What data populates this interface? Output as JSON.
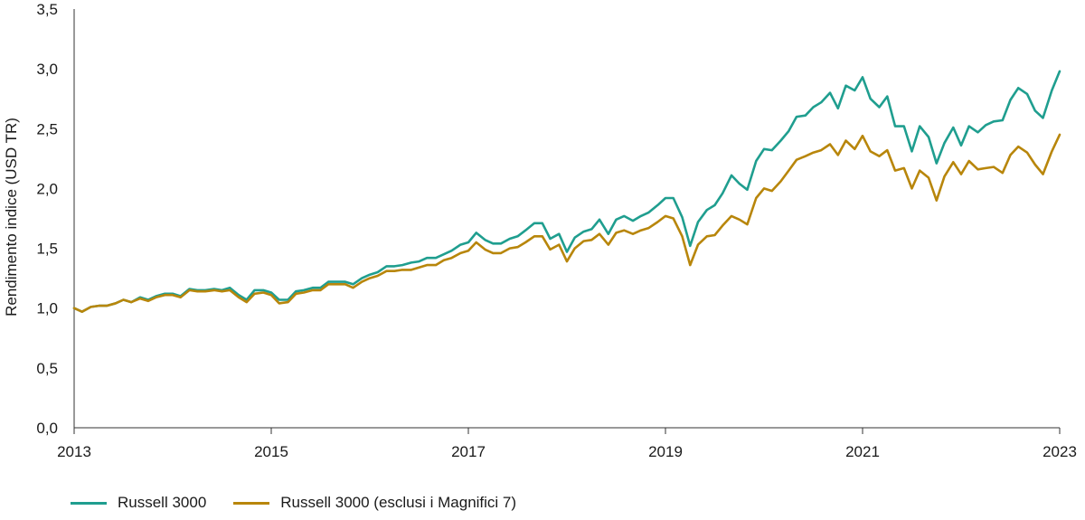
{
  "chart_data": {
    "type": "line",
    "ylabel": "Rendimento indice (USD TR)",
    "xlabel": "",
    "ylim": [
      0,
      3.5
    ],
    "yticks": [
      "0,0",
      "0,5",
      "1,0",
      "1,5",
      "2,0",
      "2,5",
      "3,0",
      "3,5"
    ],
    "xticks": [
      "2013",
      "2015",
      "2017",
      "2019",
      "2021",
      "2023"
    ],
    "xlim": [
      2013,
      2023
    ],
    "grid": false,
    "legend_position": "bottom-left",
    "series": [
      {
        "name": "Russell 3000",
        "color": "#1f9e8f",
        "points": [
          [
            2013.0,
            1.0
          ],
          [
            2013.08,
            0.97
          ],
          [
            2013.17,
            1.01
          ],
          [
            2013.25,
            1.02
          ],
          [
            2013.33,
            1.02
          ],
          [
            2013.42,
            1.04
          ],
          [
            2013.5,
            1.07
          ],
          [
            2013.58,
            1.05
          ],
          [
            2013.67,
            1.09
          ],
          [
            2013.75,
            1.07
          ],
          [
            2013.83,
            1.1
          ],
          [
            2013.92,
            1.12
          ],
          [
            2014.0,
            1.12
          ],
          [
            2014.08,
            1.1
          ],
          [
            2014.17,
            1.16
          ],
          [
            2014.25,
            1.15
          ],
          [
            2014.33,
            1.15
          ],
          [
            2014.42,
            1.16
          ],
          [
            2014.5,
            1.15
          ],
          [
            2014.58,
            1.17
          ],
          [
            2014.67,
            1.11
          ],
          [
            2014.75,
            1.07
          ],
          [
            2014.83,
            1.15
          ],
          [
            2014.92,
            1.15
          ],
          [
            2015.0,
            1.13
          ],
          [
            2015.08,
            1.07
          ],
          [
            2015.17,
            1.07
          ],
          [
            2015.25,
            1.14
          ],
          [
            2015.33,
            1.15
          ],
          [
            2015.42,
            1.17
          ],
          [
            2015.5,
            1.17
          ],
          [
            2015.58,
            1.22
          ],
          [
            2015.67,
            1.22
          ],
          [
            2015.75,
            1.22
          ],
          [
            2015.83,
            1.2
          ],
          [
            2015.92,
            1.25
          ],
          [
            2016.0,
            1.28
          ],
          [
            2016.08,
            1.3
          ],
          [
            2016.17,
            1.35
          ],
          [
            2016.25,
            1.35
          ],
          [
            2016.33,
            1.36
          ],
          [
            2016.42,
            1.38
          ],
          [
            2016.5,
            1.39
          ],
          [
            2016.58,
            1.42
          ],
          [
            2016.67,
            1.42
          ],
          [
            2016.75,
            1.45
          ],
          [
            2016.83,
            1.48
          ],
          [
            2016.92,
            1.53
          ],
          [
            2017.0,
            1.55
          ],
          [
            2017.08,
            1.63
          ],
          [
            2017.17,
            1.57
          ],
          [
            2017.25,
            1.54
          ],
          [
            2017.33,
            1.54
          ],
          [
            2017.42,
            1.58
          ],
          [
            2017.5,
            1.6
          ],
          [
            2017.58,
            1.65
          ],
          [
            2017.67,
            1.71
          ],
          [
            2017.75,
            1.71
          ],
          [
            2017.83,
            1.58
          ],
          [
            2017.92,
            1.62
          ],
          [
            2018.0,
            1.47
          ],
          [
            2018.08,
            1.59
          ],
          [
            2018.17,
            1.64
          ],
          [
            2018.25,
            1.66
          ],
          [
            2018.33,
            1.74
          ],
          [
            2018.42,
            1.62
          ],
          [
            2018.5,
            1.74
          ],
          [
            2018.58,
            1.77
          ],
          [
            2018.67,
            1.73
          ],
          [
            2018.75,
            1.77
          ],
          [
            2018.83,
            1.8
          ],
          [
            2018.92,
            1.86
          ],
          [
            2019.0,
            1.92
          ],
          [
            2019.08,
            1.92
          ],
          [
            2019.17,
            1.76
          ],
          [
            2019.25,
            1.52
          ],
          [
            2019.33,
            1.72
          ],
          [
            2019.42,
            1.82
          ],
          [
            2019.5,
            1.86
          ],
          [
            2019.58,
            1.96
          ],
          [
            2019.67,
            2.11
          ],
          [
            2019.75,
            2.04
          ],
          [
            2019.83,
            1.99
          ],
          [
            2019.92,
            2.23
          ],
          [
            2020.0,
            2.33
          ],
          [
            2020.08,
            2.32
          ],
          [
            2020.17,
            2.4
          ],
          [
            2020.25,
            2.48
          ],
          [
            2020.33,
            2.6
          ],
          [
            2020.42,
            2.61
          ],
          [
            2020.5,
            2.68
          ],
          [
            2020.58,
            2.72
          ],
          [
            2020.67,
            2.8
          ],
          [
            2020.75,
            2.67
          ],
          [
            2020.83,
            2.86
          ],
          [
            2020.92,
            2.82
          ],
          [
            2021.0,
            2.93
          ],
          [
            2021.08,
            2.75
          ],
          [
            2021.17,
            2.68
          ],
          [
            2021.25,
            2.77
          ],
          [
            2021.33,
            2.52
          ],
          [
            2021.42,
            2.52
          ],
          [
            2021.5,
            2.31
          ],
          [
            2021.58,
            2.52
          ],
          [
            2021.67,
            2.43
          ],
          [
            2021.75,
            2.21
          ],
          [
            2021.83,
            2.38
          ],
          [
            2021.92,
            2.51
          ],
          [
            2022.0,
            2.36
          ],
          [
            2022.08,
            2.52
          ],
          [
            2022.17,
            2.47
          ],
          [
            2022.25,
            2.53
          ],
          [
            2022.33,
            2.56
          ],
          [
            2022.42,
            2.57
          ],
          [
            2022.5,
            2.74
          ],
          [
            2022.58,
            2.84
          ],
          [
            2022.67,
            2.79
          ],
          [
            2022.75,
            2.65
          ],
          [
            2022.83,
            2.59
          ],
          [
            2022.92,
            2.82
          ],
          [
            2023.0,
            2.98
          ]
        ]
      },
      {
        "name": "Russell 3000 (esclusi i Magnifici 7)",
        "color": "#b8860b",
        "points": [
          [
            2013.0,
            1.0
          ],
          [
            2013.08,
            0.97
          ],
          [
            2013.17,
            1.01
          ],
          [
            2013.25,
            1.02
          ],
          [
            2013.33,
            1.02
          ],
          [
            2013.42,
            1.04
          ],
          [
            2013.5,
            1.07
          ],
          [
            2013.58,
            1.05
          ],
          [
            2013.67,
            1.08
          ],
          [
            2013.75,
            1.06
          ],
          [
            2013.83,
            1.09
          ],
          [
            2013.92,
            1.11
          ],
          [
            2014.0,
            1.11
          ],
          [
            2014.08,
            1.09
          ],
          [
            2014.17,
            1.15
          ],
          [
            2014.25,
            1.14
          ],
          [
            2014.33,
            1.14
          ],
          [
            2014.42,
            1.15
          ],
          [
            2014.5,
            1.14
          ],
          [
            2014.58,
            1.15
          ],
          [
            2014.67,
            1.09
          ],
          [
            2014.75,
            1.05
          ],
          [
            2014.83,
            1.12
          ],
          [
            2014.92,
            1.13
          ],
          [
            2015.0,
            1.11
          ],
          [
            2015.08,
            1.04
          ],
          [
            2015.17,
            1.05
          ],
          [
            2015.25,
            1.12
          ],
          [
            2015.33,
            1.13
          ],
          [
            2015.42,
            1.15
          ],
          [
            2015.5,
            1.15
          ],
          [
            2015.58,
            1.2
          ],
          [
            2015.67,
            1.2
          ],
          [
            2015.75,
            1.2
          ],
          [
            2015.83,
            1.17
          ],
          [
            2015.92,
            1.22
          ],
          [
            2016.0,
            1.25
          ],
          [
            2016.08,
            1.27
          ],
          [
            2016.17,
            1.31
          ],
          [
            2016.25,
            1.31
          ],
          [
            2016.33,
            1.32
          ],
          [
            2016.42,
            1.32
          ],
          [
            2016.5,
            1.34
          ],
          [
            2016.58,
            1.36
          ],
          [
            2016.67,
            1.36
          ],
          [
            2016.75,
            1.4
          ],
          [
            2016.83,
            1.42
          ],
          [
            2016.92,
            1.46
          ],
          [
            2017.0,
            1.48
          ],
          [
            2017.08,
            1.55
          ],
          [
            2017.17,
            1.49
          ],
          [
            2017.25,
            1.46
          ],
          [
            2017.33,
            1.46
          ],
          [
            2017.42,
            1.5
          ],
          [
            2017.5,
            1.51
          ],
          [
            2017.58,
            1.55
          ],
          [
            2017.67,
            1.6
          ],
          [
            2017.75,
            1.6
          ],
          [
            2017.83,
            1.49
          ],
          [
            2017.92,
            1.53
          ],
          [
            2018.0,
            1.39
          ],
          [
            2018.08,
            1.5
          ],
          [
            2018.17,
            1.56
          ],
          [
            2018.25,
            1.57
          ],
          [
            2018.33,
            1.62
          ],
          [
            2018.42,
            1.53
          ],
          [
            2018.5,
            1.63
          ],
          [
            2018.58,
            1.65
          ],
          [
            2018.67,
            1.62
          ],
          [
            2018.75,
            1.65
          ],
          [
            2018.83,
            1.67
          ],
          [
            2018.92,
            1.72
          ],
          [
            2019.0,
            1.77
          ],
          [
            2019.08,
            1.75
          ],
          [
            2019.17,
            1.6
          ],
          [
            2019.25,
            1.36
          ],
          [
            2019.33,
            1.53
          ],
          [
            2019.42,
            1.6
          ],
          [
            2019.5,
            1.61
          ],
          [
            2019.58,
            1.69
          ],
          [
            2019.67,
            1.77
          ],
          [
            2019.75,
            1.74
          ],
          [
            2019.83,
            1.7
          ],
          [
            2019.92,
            1.92
          ],
          [
            2020.0,
            2.0
          ],
          [
            2020.08,
            1.98
          ],
          [
            2020.17,
            2.06
          ],
          [
            2020.25,
            2.15
          ],
          [
            2020.33,
            2.24
          ],
          [
            2020.42,
            2.27
          ],
          [
            2020.5,
            2.3
          ],
          [
            2020.58,
            2.32
          ],
          [
            2020.67,
            2.37
          ],
          [
            2020.75,
            2.28
          ],
          [
            2020.83,
            2.4
          ],
          [
            2020.92,
            2.33
          ],
          [
            2021.0,
            2.44
          ],
          [
            2021.08,
            2.31
          ],
          [
            2021.17,
            2.27
          ],
          [
            2021.25,
            2.32
          ],
          [
            2021.33,
            2.15
          ],
          [
            2021.42,
            2.17
          ],
          [
            2021.5,
            2.0
          ],
          [
            2021.58,
            2.15
          ],
          [
            2021.67,
            2.09
          ],
          [
            2021.75,
            1.9
          ],
          [
            2021.83,
            2.1
          ],
          [
            2021.92,
            2.22
          ],
          [
            2022.0,
            2.12
          ],
          [
            2022.08,
            2.23
          ],
          [
            2022.17,
            2.16
          ],
          [
            2022.25,
            2.17
          ],
          [
            2022.33,
            2.18
          ],
          [
            2022.42,
            2.13
          ],
          [
            2022.5,
            2.28
          ],
          [
            2022.58,
            2.35
          ],
          [
            2022.67,
            2.3
          ],
          [
            2022.75,
            2.2
          ],
          [
            2022.83,
            2.12
          ],
          [
            2022.92,
            2.31
          ],
          [
            2023.0,
            2.45
          ]
        ]
      }
    ]
  }
}
